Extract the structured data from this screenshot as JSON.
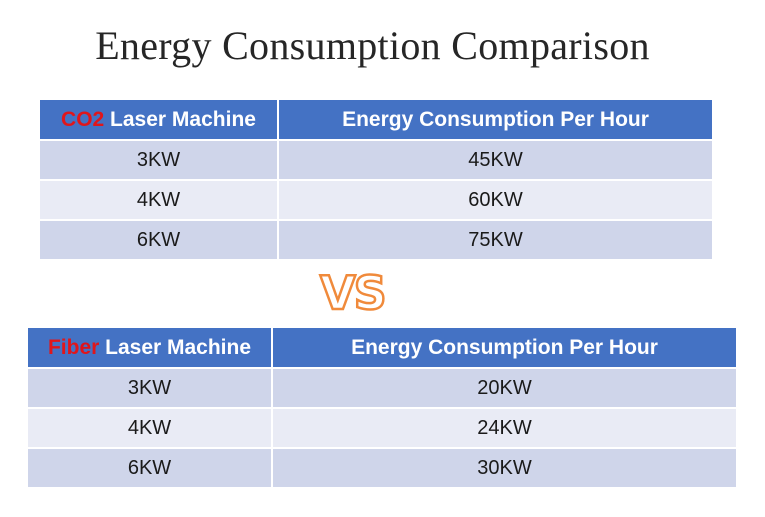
{
  "title": "Energy Consumption Comparison",
  "vs_label": "VS",
  "colors": {
    "header_bg": "#4472c4",
    "highlight": "#e0161b",
    "row_odd": "#cfd5ea",
    "row_even": "#e9ebf5",
    "vs_stroke": "#f08a3b"
  },
  "chart_data": {
    "type": "table",
    "title": "Energy Consumption Comparison",
    "tables": [
      {
        "header_highlight": "CO2",
        "header_rest": " Laser Machine",
        "value_header": "Energy Consumption Per Hour",
        "rows": [
          {
            "machine": "3KW",
            "consumption": "45KW"
          },
          {
            "machine": "4KW",
            "consumption": "60KW"
          },
          {
            "machine": "6KW",
            "consumption": "75KW"
          }
        ]
      },
      {
        "header_highlight": "Fiber",
        "header_rest": " Laser Machine",
        "value_header": "Energy Consumption Per Hour",
        "rows": [
          {
            "machine": "3KW",
            "consumption": "20KW"
          },
          {
            "machine": "4KW",
            "consumption": "24KW"
          },
          {
            "machine": "6KW",
            "consumption": "30KW"
          }
        ]
      }
    ]
  }
}
